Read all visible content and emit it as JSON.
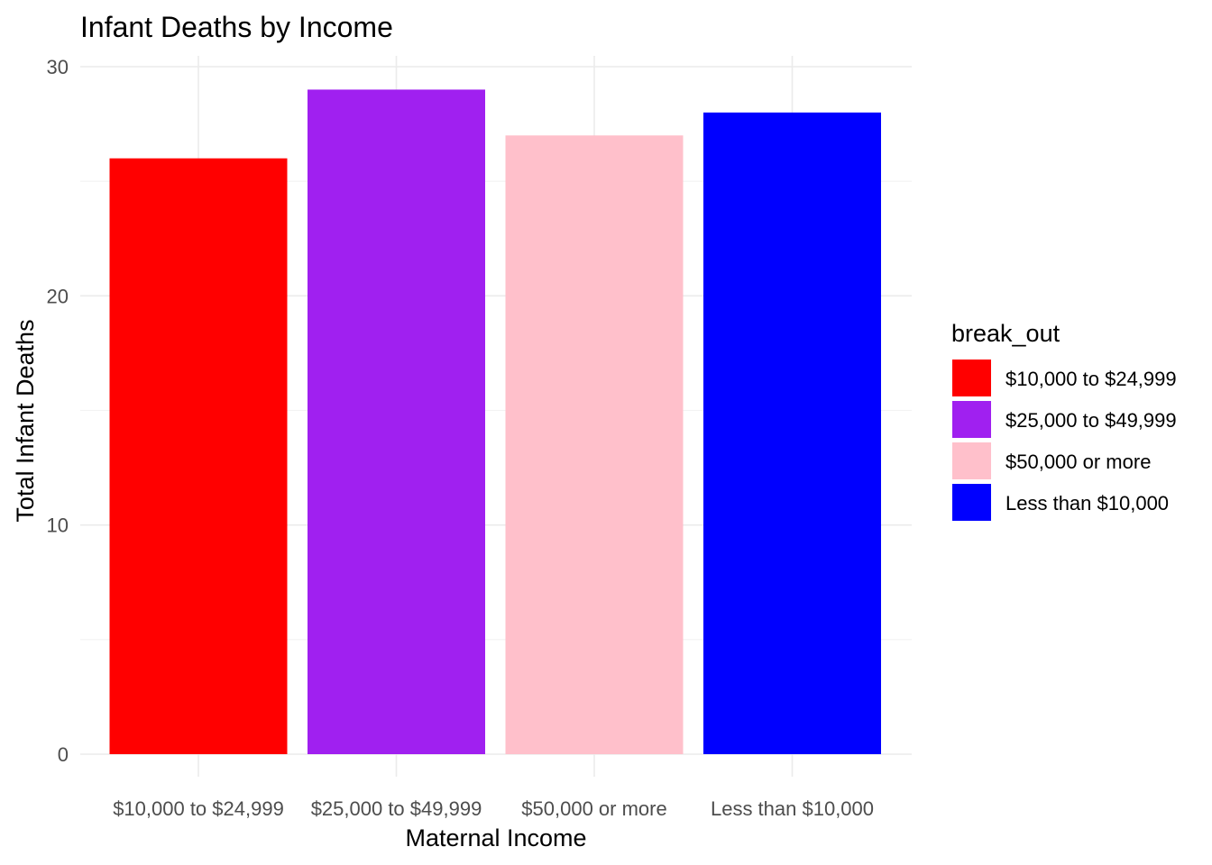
{
  "chart_data": {
    "type": "bar",
    "title": "Infant Deaths by Income",
    "xlabel": "Maternal Income",
    "ylabel": "Total Infant Deaths",
    "categories": [
      "$10,000 to $24,999",
      "$25,000 to $49,999",
      "$50,000 or more",
      "Less than $10,000"
    ],
    "values": [
      26,
      29,
      27,
      28
    ],
    "colors": [
      "#ff0000",
      "#a020f0",
      "#ffc0cb",
      "#0000ff"
    ],
    "ylim": [
      0,
      30
    ],
    "yticks": [
      0,
      10,
      20,
      30
    ],
    "ytick_labels": [
      "0",
      "10",
      "20",
      "30"
    ],
    "grid": true,
    "legend": {
      "title": "break_out",
      "placement": "right",
      "entries": [
        "$10,000 to $24,999",
        "$25,000 to $49,999",
        "$50,000 or more",
        "Less than $10,000"
      ]
    }
  }
}
